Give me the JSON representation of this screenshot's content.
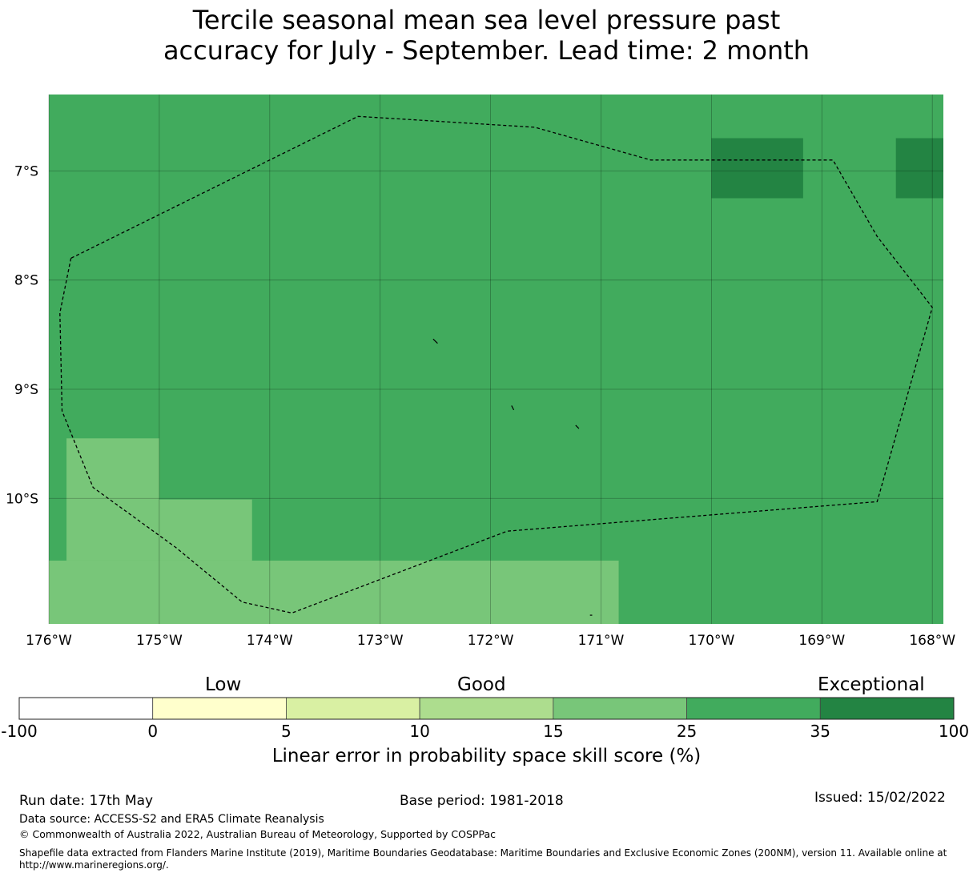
{
  "title": {
    "line1": "Tercile seasonal mean sea level pressure past",
    "line2": "accuracy for July - September. Lead time: 2 month"
  },
  "map": {
    "lon_range": [
      -176,
      -167.9
    ],
    "lat_range": [
      -11.15,
      -6.3
    ],
    "lon_ticks": [
      "176°W",
      "175°W",
      "174°W",
      "173°W",
      "172°W",
      "171°W",
      "170°W",
      "169°W",
      "168°W"
    ],
    "lat_ticks": [
      "7°S",
      "8°S",
      "9°S",
      "10°S"
    ],
    "colors": {
      "background_cell": "#41ab5d",
      "exceptional_cell": "#238443",
      "good_cell": "#78c679",
      "boundary": "#000000"
    },
    "cells": [
      {
        "lon": [
          -170.0,
          -169.17
        ],
        "lat": [
          -7.25,
          -6.7
        ],
        "category": "35-100"
      },
      {
        "lon": [
          -168.33,
          -167.9
        ],
        "lat": [
          -7.25,
          -6.7
        ],
        "category": "35-100"
      },
      {
        "lon": [
          -175.84,
          -175.0
        ],
        "lat": [
          -10.57,
          -9.45
        ],
        "category": "15-25"
      },
      {
        "lon": [
          -175.0,
          -174.16
        ],
        "lat": [
          -10.57,
          -10.01
        ],
        "category": "15-25"
      },
      {
        "lon": [
          -176.0,
          -170.84
        ],
        "lat": [
          -11.15,
          -10.57
        ],
        "category": "15-25"
      }
    ],
    "eez_boundary": [
      [
        -175.8,
        -7.8
      ],
      [
        -175.9,
        -8.3
      ],
      [
        -175.88,
        -9.2
      ],
      [
        -175.6,
        -9.9
      ],
      [
        -174.85,
        -10.45
      ],
      [
        -174.25,
        -10.95
      ],
      [
        -173.8,
        -11.05
      ],
      [
        -171.85,
        -10.3
      ],
      [
        -168.5,
        -10.03
      ],
      [
        -168.0,
        -8.25
      ],
      [
        -168.5,
        -7.6
      ],
      [
        -168.9,
        -6.9
      ],
      [
        -170.55,
        -6.9
      ],
      [
        -171.6,
        -6.6
      ],
      [
        -173.2,
        -6.5
      ],
      [
        -175.8,
        -7.8
      ]
    ],
    "islands": [
      [
        [
          -172.52,
          -8.54
        ],
        [
          -172.48,
          -8.58
        ]
      ],
      [
        [
          -171.81,
          -9.15
        ],
        [
          -171.79,
          -9.19
        ]
      ],
      [
        [
          -171.23,
          -9.33
        ],
        [
          -171.2,
          -9.36
        ]
      ],
      [
        [
          -171.1,
          -11.07
        ],
        [
          -171.08,
          -11.07
        ]
      ]
    ]
  },
  "colorbar": {
    "categories": {
      "low": "Low",
      "good": "Good",
      "exceptional": "Exceptional"
    },
    "ticks": [
      "-100",
      "0",
      "5",
      "10",
      "15",
      "25",
      "35",
      "100"
    ],
    "segments": [
      {
        "range": "-100-0",
        "color": "#ffffff"
      },
      {
        "range": "0-5",
        "color": "#ffffcc"
      },
      {
        "range": "5-10",
        "color": "#d9f0a3"
      },
      {
        "range": "10-15",
        "color": "#addd8e"
      },
      {
        "range": "15-25",
        "color": "#78c679"
      },
      {
        "range": "25-35",
        "color": "#41ab5d"
      },
      {
        "range": "35-100",
        "color": "#238443"
      }
    ],
    "label": "Linear error in probability space skill score (%)"
  },
  "footer": {
    "run_date": "Run date: 17th May",
    "base_period": "Base period: 1981-2018",
    "issued": "Issued: 15/02/2022",
    "data_source": "Data source: ACCESS-S2 and ERA5 Climate Reanalysis",
    "copyright": "© Commonwealth of Australia 2022, Australian Bureau of Meteorology, Supported by COSPPac",
    "shapefile": "Shapefile data extracted from Flanders Marine Institute (2019), Maritime Boundaries Geodatabase: Maritime Boundaries and Exclusive Economic Zones (200NM), version 11. Available online at http://www.marineregions.org/."
  }
}
